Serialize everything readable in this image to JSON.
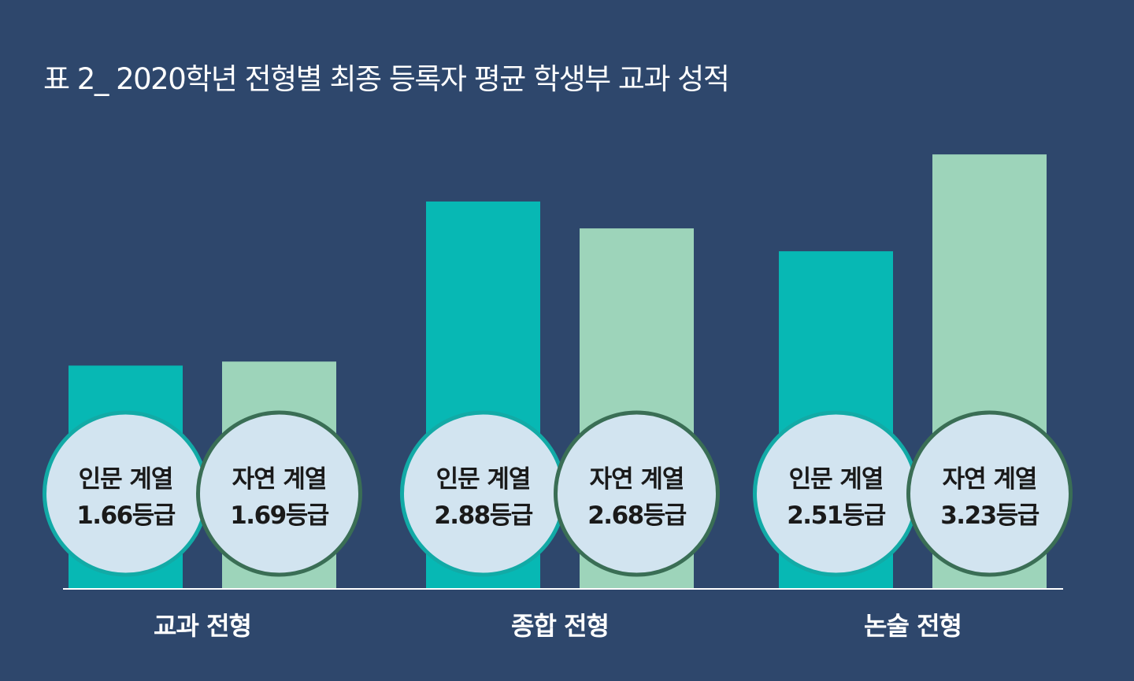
{
  "title": "표 2_ 2020학년 전형별 최종 등록자 평균 학생부 교과 성적",
  "chart_data": {
    "type": "bar",
    "title": "표 2_ 2020학년 전형별 최종 등록자 평균 학생부 교과 성적",
    "unit": "등급",
    "categories": [
      "교과 전형",
      "종합 전형",
      "논술 전형"
    ],
    "series": [
      {
        "name": "인문 계열",
        "values": [
          1.66,
          2.88,
          2.51
        ],
        "color": "#07b8b4",
        "ring_color": "#12aaa6"
      },
      {
        "name": "자연 계열",
        "values": [
          1.69,
          2.68,
          3.23
        ],
        "color": "#9dd4ba",
        "ring_color": "#3a6e55"
      }
    ],
    "labels": [
      [
        "1.66등급",
        "2.88등급",
        "2.51등급"
      ],
      [
        "1.69등급",
        "2.68등급",
        "3.23등급"
      ]
    ],
    "ylim": [
      0,
      3.5
    ],
    "grid": false,
    "axis_color": "#ffffff",
    "circle_fill": "#d2e4f0"
  }
}
